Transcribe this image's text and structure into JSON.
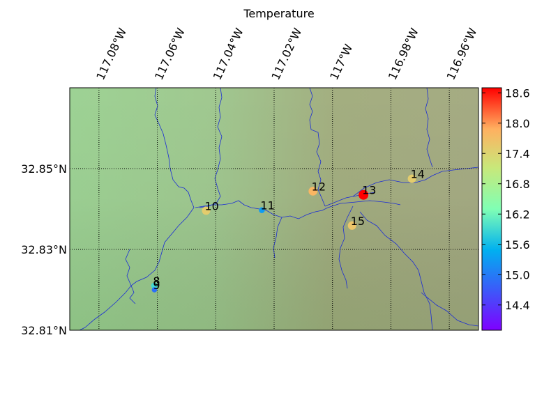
{
  "title": "Temperature",
  "map": {
    "lon_range": [
      -117.09,
      -116.95
    ],
    "lat_range": [
      32.81,
      32.87
    ],
    "lon_ticks": [
      {
        "value": -117.08,
        "label": "117.08°W"
      },
      {
        "value": -117.06,
        "label": "117.06°W"
      },
      {
        "value": -117.04,
        "label": "117.04°W"
      },
      {
        "value": -117.02,
        "label": "117.02°W"
      },
      {
        "value": -117.0,
        "label": "117°W"
      },
      {
        "value": -116.98,
        "label": "116.98°W"
      },
      {
        "value": -116.96,
        "label": "116.96°W"
      }
    ],
    "lat_ticks": [
      {
        "value": 32.85,
        "label": "32.85°N"
      },
      {
        "value": 32.83,
        "label": "32.83°N"
      },
      {
        "value": 32.81,
        "label": "32.81°N"
      }
    ],
    "grid": "dotted"
  },
  "colorbar": {
    "range": [
      13.9,
      18.7
    ],
    "ticks": [
      "14.4",
      "15.0",
      "15.6",
      "16.2",
      "16.8",
      "17.4",
      "18.0",
      "18.6"
    ]
  },
  "stations": [
    {
      "label": "8",
      "lon": -117.061,
      "lat": 32.821,
      "temp": 15.9
    },
    {
      "label": "9",
      "lon": -117.061,
      "lat": 32.82,
      "temp": 14.9
    },
    {
      "label": "10",
      "lon": -117.0433,
      "lat": 32.8396,
      "temp": 17.5
    },
    {
      "label": "11",
      "lon": -117.0242,
      "lat": 32.8397,
      "temp": 15.3
    },
    {
      "label": "12",
      "lon": -117.0067,
      "lat": 32.8444,
      "temp": 17.8
    },
    {
      "label": "13",
      "lon": -116.9894,
      "lat": 32.8435,
      "temp": 18.7
    },
    {
      "label": "14",
      "lon": -116.9728,
      "lat": 32.8475,
      "temp": 17.5
    },
    {
      "label": "15",
      "lon": -116.9933,
      "lat": 32.8359,
      "temp": 17.6
    }
  ],
  "rivers_color": "#1a2bd6"
}
